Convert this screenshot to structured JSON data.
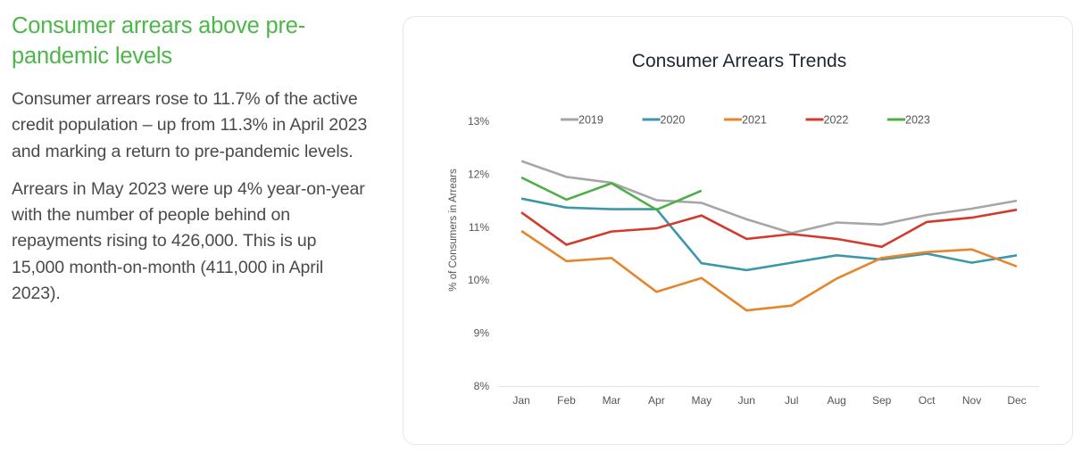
{
  "article": {
    "headline": "Consumer arrears above pre-pandemic levels",
    "paragraphs": [
      "Consumer arrears rose to 11.7% of the active credit population – up from 11.3% in April 2023 and marking a return to pre-pandemic levels.",
      "Arrears in May 2023 were up 4% year-on-year with the number of people behind on repayments rising to 426,000. This is up 15,000 month-on-month (411,000 in April 2023)."
    ],
    "headline_color": "#4cb748"
  },
  "chart_data": {
    "type": "line",
    "title": "Consumer Arrears Trends",
    "xlabel": "",
    "ylabel": "% of Consumers in Arrears",
    "categories": [
      "Jan",
      "Feb",
      "Mar",
      "Apr",
      "May",
      "Jun",
      "Jul",
      "Aug",
      "Sep",
      "Oct",
      "Nov",
      "Dec"
    ],
    "ylim": [
      8,
      13
    ],
    "yticks": [
      8,
      9,
      10,
      11,
      12,
      13
    ],
    "ytick_labels": [
      "8%",
      "9%",
      "10%",
      "11%",
      "12%",
      "13%"
    ],
    "grid": false,
    "legend_position": "top",
    "series": [
      {
        "name": "2019",
        "color": "#a6a6a6",
        "values": [
          12.25,
          11.95,
          11.84,
          11.51,
          11.46,
          11.15,
          10.89,
          11.09,
          11.05,
          11.23,
          11.35,
          11.5
        ]
      },
      {
        "name": "2020",
        "color": "#3d97aa",
        "values": [
          11.54,
          11.37,
          11.34,
          11.34,
          10.32,
          10.19,
          10.33,
          10.47,
          10.39,
          10.5,
          10.33,
          10.47
        ]
      },
      {
        "name": "2021",
        "color": "#e5862d",
        "values": [
          10.93,
          10.36,
          10.42,
          9.78,
          10.04,
          9.43,
          9.52,
          10.03,
          10.42,
          10.53,
          10.58,
          10.26
        ]
      },
      {
        "name": "2022",
        "color": "#d33a2c",
        "values": [
          11.28,
          10.67,
          10.92,
          10.98,
          11.22,
          10.78,
          10.87,
          10.78,
          10.63,
          11.1,
          11.18,
          11.33
        ]
      },
      {
        "name": "2023",
        "color": "#4caf46",
        "values": [
          11.94,
          11.52,
          11.83,
          11.33,
          11.69
        ]
      }
    ]
  }
}
